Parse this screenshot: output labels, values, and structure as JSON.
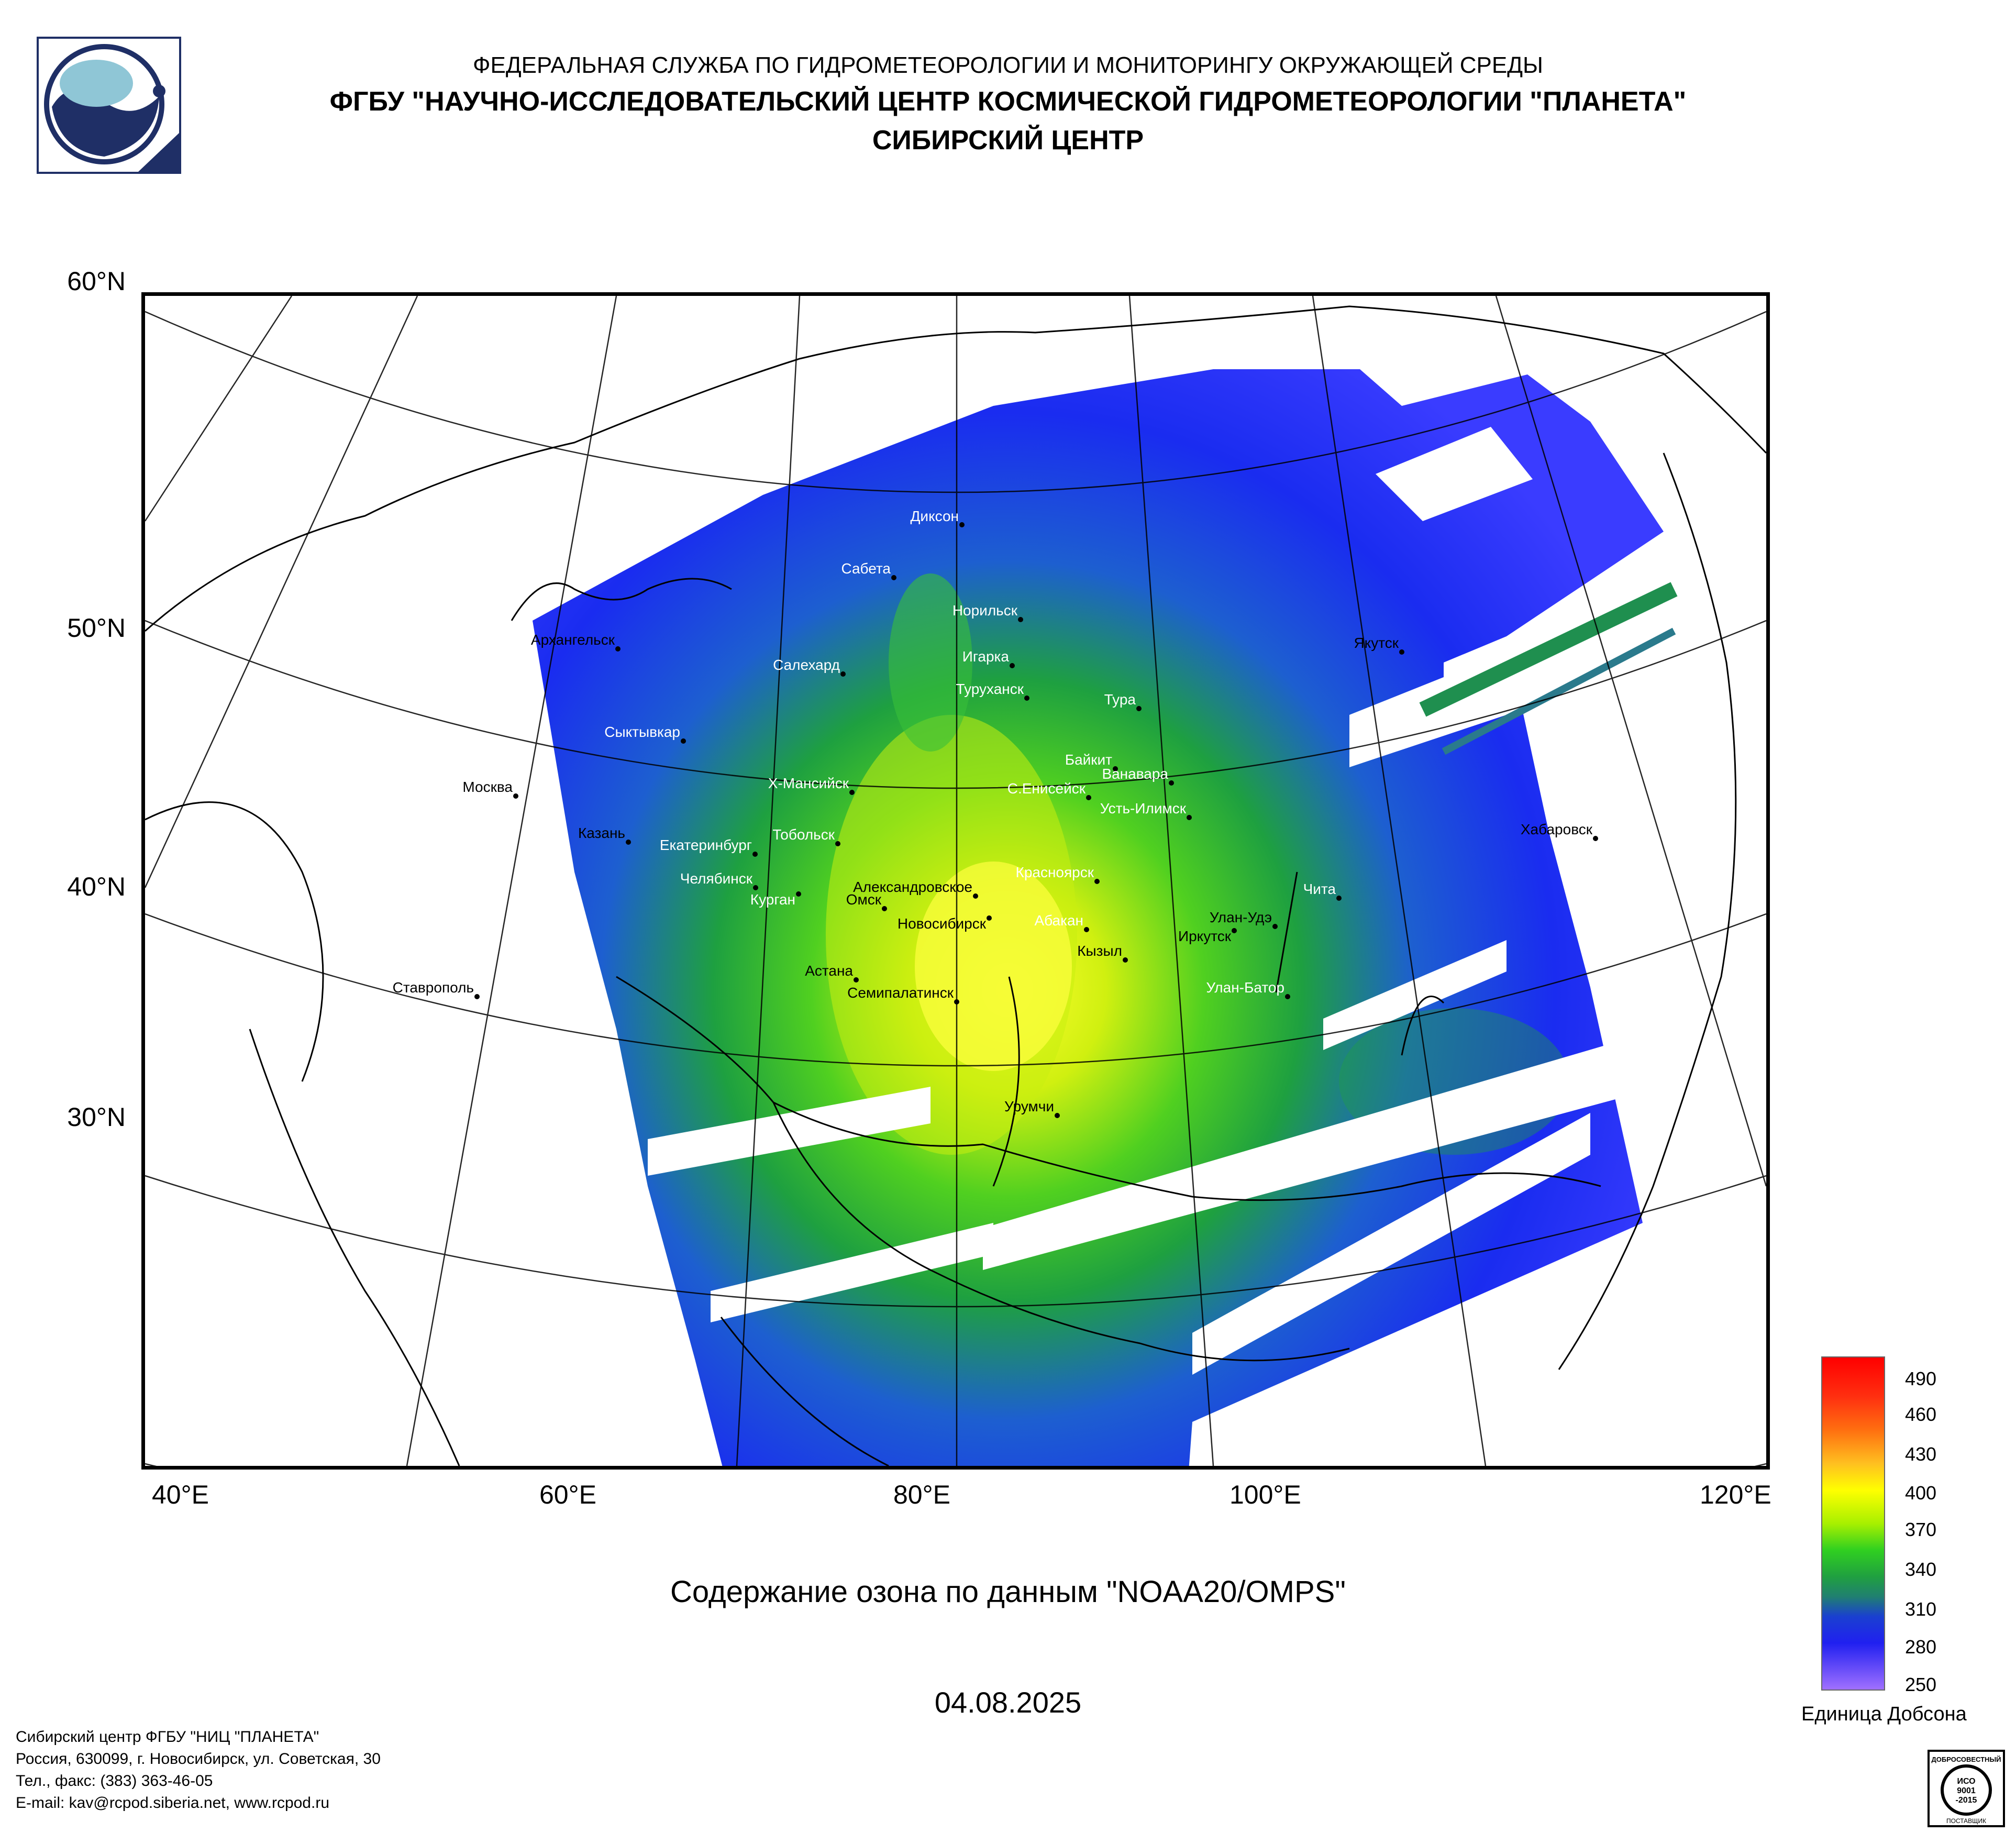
{
  "header": {
    "line1": "ФЕДЕРАЛЬНАЯ СЛУЖБА ПО ГИДРОМЕТЕОРОЛОГИИ И МОНИТОРИНГУ ОКРУЖАЮЩЕЙ СРЕДЫ",
    "line2": "ФГБУ \"НАУЧНО-ИССЛЕДОВАТЕЛЬСКИЙ ЦЕНТР КОСМИЧЕСКОЙ ГИДРОМЕТЕОРОЛОГИИ \"ПЛАНЕТА\"",
    "line3": "СИБИРСКИЙ ЦЕНТР"
  },
  "map": {
    "lat_labels": [
      "60°N",
      "50°N",
      "40°N",
      "30°N"
    ],
    "lon_labels": [
      "40°E",
      "60°E",
      "80°E",
      "100°E",
      "120°E"
    ],
    "cities": [
      "Диксон",
      "Сабета",
      "Норильск",
      "Игарка",
      "Салехард",
      "Архангельск",
      "Туруханск",
      "Тура",
      "Сыктывкар",
      "Байкит",
      "Ванавара",
      "Москва",
      "Х-Мансийск",
      "С.Енисейск",
      "Усть-Илимск",
      "Казань",
      "Екатеринбург",
      "Тобольск",
      "Красноярск",
      "Челябинск",
      "Александровское",
      "Курган",
      "Омск",
      "Новосибирск",
      "Абакан",
      "Улан-Удэ",
      "Чита",
      "Иркутск",
      "Кызыл",
      "Астана",
      "Семипалатинск",
      "Улан-Батор",
      "Ставрополь",
      "Урумчи",
      "Якутск",
      "Хабаровск"
    ]
  },
  "title": "Содержание озона по данным \"NOAA20/OMPS\"",
  "date": "04.08.2025",
  "legend": {
    "ticks": [
      "490",
      "460",
      "430",
      "400",
      "370",
      "340",
      "310",
      "280",
      "250"
    ],
    "unit": "Единица Добсона",
    "colors": [
      "#ff0000",
      "#ff4000",
      "#ff8000",
      "#ffc000",
      "#ffff00",
      "#b0ff00",
      "#40e000",
      "#20a040",
      "#2050c0",
      "#3030ff",
      "#5050ff",
      "#9070ff"
    ]
  },
  "footer": {
    "line1": "Сибирский центр ФГБУ \"НИЦ \"ПЛАНЕТА\"",
    "line2": "Россия, 630099, г. Новосибирск, ул. Советская, 30",
    "line3": "Тел., факс: (383) 363-46-05",
    "line4": "E-mail: kav@rcpod.siberia.net, www.rcpod.ru"
  },
  "cert": {
    "line1": "ДОБРОСОВЕСТНЫЙ",
    "line2": "ИСО",
    "line3": "9001",
    "line4": "-2015",
    "line5": "ПОСТАВЩИК"
  }
}
